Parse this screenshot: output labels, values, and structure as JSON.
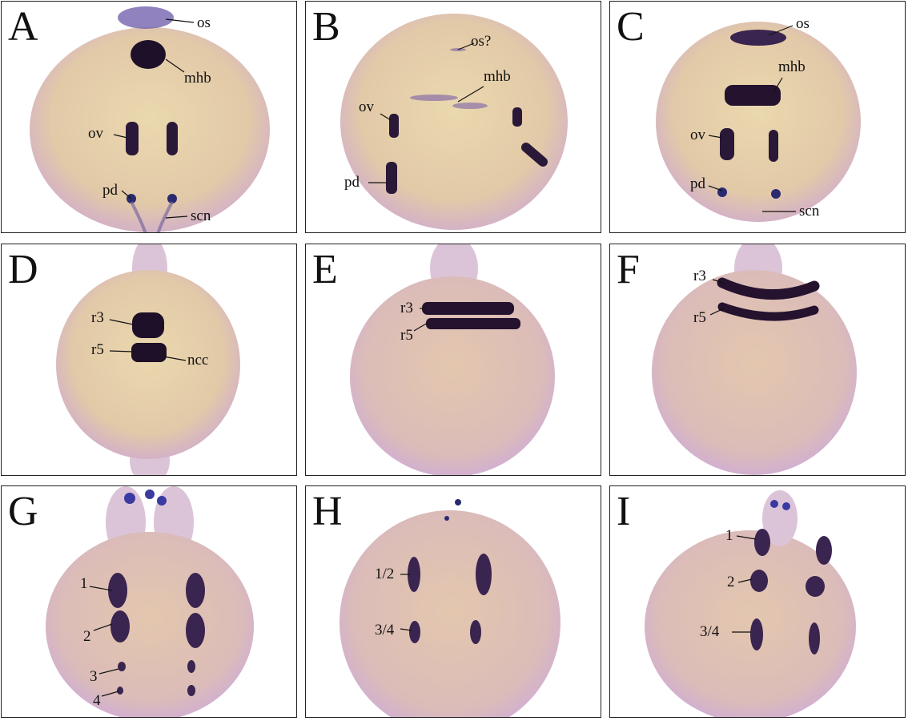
{
  "colors": {
    "stain": "#2b1840",
    "embryo": "#e6d2a8",
    "embryo_edge": "#d7b6c8"
  },
  "panels": [
    {
      "letter": "A",
      "labels": [
        "os",
        "mhb",
        "ov",
        "pd",
        "scn"
      ]
    },
    {
      "letter": "B",
      "labels": [
        "os?",
        "mhb",
        "ov",
        "pd"
      ]
    },
    {
      "letter": "C",
      "labels": [
        "os",
        "mhb",
        "ov",
        "pd",
        "scn"
      ]
    },
    {
      "letter": "D",
      "labels": [
        "r3",
        "r5",
        "ncc"
      ]
    },
    {
      "letter": "E",
      "labels": [
        "r3",
        "r5"
      ]
    },
    {
      "letter": "F",
      "labels": [
        "r3",
        "r5"
      ]
    },
    {
      "letter": "G",
      "labels": [
        "1",
        "2",
        "3",
        "4"
      ]
    },
    {
      "letter": "H",
      "labels": [
        "1/2",
        "3/4"
      ]
    },
    {
      "letter": "I",
      "labels": [
        "1",
        "2",
        "3/4"
      ]
    }
  ]
}
